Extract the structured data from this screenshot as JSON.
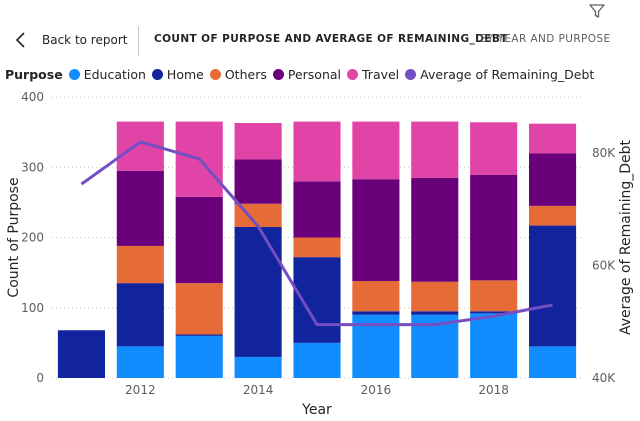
{
  "header": {
    "back_label": "Back to report",
    "title": "COUNT OF PURPOSE AND AVERAGE OF REMAINING_DEBT",
    "subtitle": "BY YEAR AND PURPOSE",
    "filter_icon": "filter-icon",
    "back_icon": "chevron-left-icon"
  },
  "legend": {
    "title": "Purpose",
    "items": [
      {
        "label": "Education",
        "color": "#118dff"
      },
      {
        "label": "Home",
        "color": "#12239e"
      },
      {
        "label": "Others",
        "color": "#e66c37"
      },
      {
        "label": "Personal",
        "color": "#6b007b"
      },
      {
        "label": "Travel",
        "color": "#e044a7"
      },
      {
        "label": "Average of Remaining_Debt",
        "color": "#744ec2"
      }
    ]
  },
  "chart_data": {
    "type": "bar",
    "stacked": true,
    "xlabel": "Year",
    "ylabel": "Count of Purpose",
    "y2label": "Average of Remaining_Debt",
    "ylim": [
      0,
      400
    ],
    "y2lim": [
      40000,
      90000
    ],
    "y_ticks": [
      "0",
      "100",
      "200",
      "300",
      "400"
    ],
    "y2_ticks": [
      "40K",
      "60K",
      "80K"
    ],
    "x_tick_labels": [
      "2012",
      "2014",
      "2016",
      "2018"
    ],
    "categories": [
      2011,
      2012,
      2013,
      2014,
      2015,
      2016,
      2017,
      2018,
      2019
    ],
    "series": [
      {
        "name": "Education",
        "color": "#118dff",
        "values": [
          0,
          45,
          60,
          30,
          50,
          90,
          90,
          92,
          45
        ]
      },
      {
        "name": "Home",
        "color": "#12239e",
        "values": [
          68,
          90,
          2,
          185,
          122,
          5,
          5,
          3,
          172
        ]
      },
      {
        "name": "Others",
        "color": "#e66c37",
        "values": [
          0,
          53,
          73,
          33,
          28,
          43,
          42,
          44,
          28
        ]
      },
      {
        "name": "Personal",
        "color": "#6b007b",
        "values": [
          0,
          107,
          123,
          63,
          80,
          145,
          148,
          150,
          75
        ]
      },
      {
        "name": "Travel",
        "color": "#e044a7",
        "values": [
          0,
          70,
          107,
          52,
          85,
          82,
          80,
          75,
          42
        ]
      }
    ],
    "line": {
      "name": "Average of Remaining_Debt",
      "color": "#744ec2",
      "values": [
        74500,
        82000,
        79000,
        67000,
        49500,
        49500,
        49500,
        51000,
        53000
      ]
    },
    "grid": true,
    "legend_position": "top-left"
  }
}
